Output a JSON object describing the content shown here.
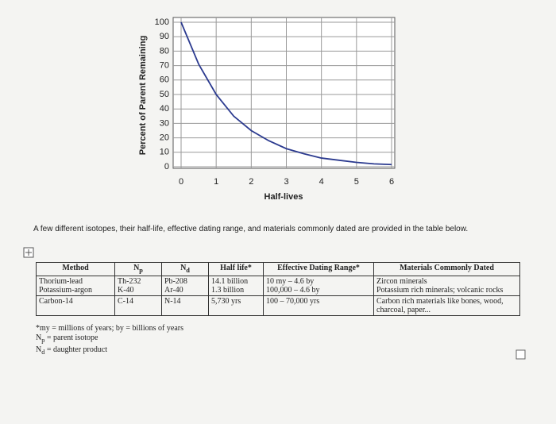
{
  "chart_data": {
    "type": "line",
    "x_label": "Half-lives",
    "y_label": "Percent of Parent Remaining",
    "x": [
      0,
      0.5,
      1,
      1.5,
      2,
      2.5,
      3,
      3.5,
      4,
      4.5,
      5,
      5.5,
      6
    ],
    "series": [
      {
        "color": "#2b3a8f",
        "values": [
          100,
          71,
          50,
          35,
          25,
          18,
          12.5,
          9,
          6,
          4.5,
          3,
          2,
          1.5
        ]
      }
    ],
    "xlim": [
      0,
      6
    ],
    "xticks": [
      0,
      1,
      2,
      3,
      4,
      5,
      6
    ],
    "ylim": [
      0,
      100
    ],
    "yticks": [
      0,
      10,
      20,
      30,
      40,
      50,
      60,
      70,
      80,
      90,
      100
    ],
    "grid": true
  },
  "intro": "A few different isotopes, their half-life, effective dating range, and materials commonly dated are provided in the table below.",
  "table": {
    "header": [
      {
        "text": "Method"
      },
      {
        "text": "N",
        "sub": "p"
      },
      {
        "text": "N",
        "sub": "d"
      },
      {
        "text": "Half life*"
      },
      {
        "text": "Effective Dating Range*"
      },
      {
        "text": "Materials Commonly Dated"
      }
    ],
    "rows": [
      [
        [
          "Thorium-lead",
          "Potassium-argon"
        ],
        [
          "Th-232",
          "K-40"
        ],
        [
          "Pb-208",
          "Ar-40"
        ],
        [
          "14.1 billion",
          "1.3 billion"
        ],
        [
          "10 my – 4.6 by",
          "100,000 – 4.6 by"
        ],
        [
          "Zircon minerals",
          "Potassium rich minerals; volcanic rocks"
        ]
      ],
      [
        [
          "Carbon-14"
        ],
        [
          "C-14"
        ],
        [
          "N-14"
        ],
        [
          "5,730 yrs"
        ],
        [
          "100 – 70,000 yrs"
        ],
        [
          "Carbon rich materials like bones, wood, charcoal, paper..."
        ]
      ]
    ]
  },
  "notes": [
    {
      "text": "*my = millions of years; by = billions of years"
    },
    {
      "text": "N",
      "sub": "p",
      "rest": " = parent isotope"
    },
    {
      "text": "N",
      "sub": "d",
      "rest": " = daughter product"
    }
  ]
}
